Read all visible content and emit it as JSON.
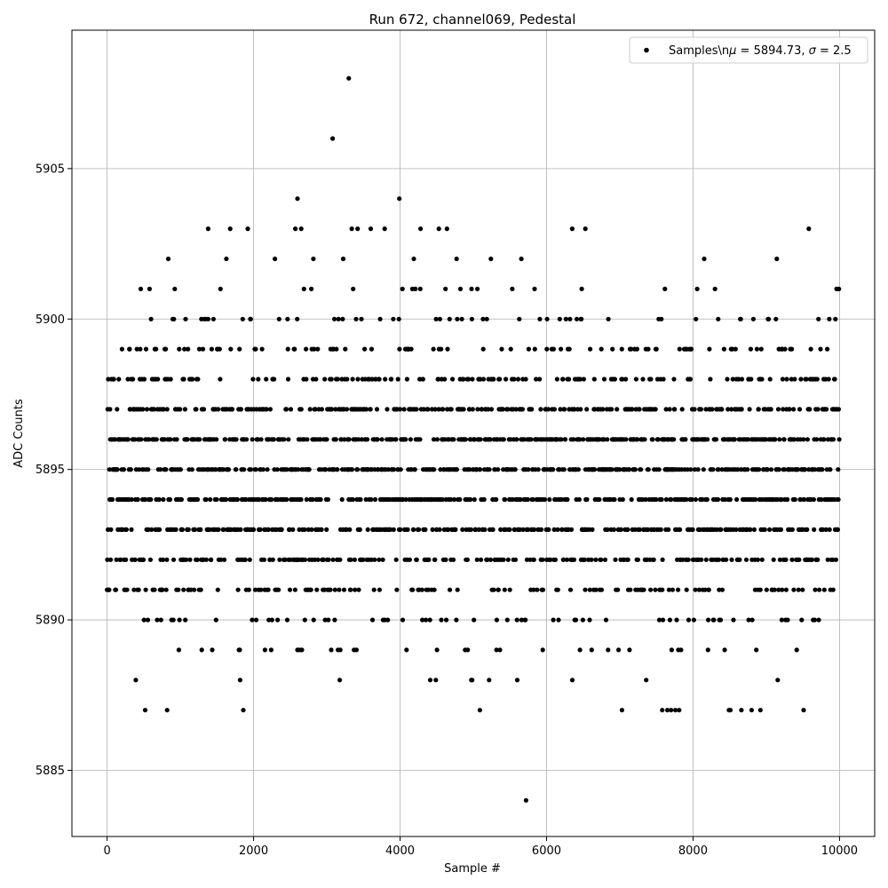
{
  "chart_data": {
    "type": "scatter",
    "title": "Run 672, channel069, Pedestal",
    "xlabel": "Sample #",
    "ylabel": "ADC Counts",
    "xlim": [
      -480,
      10480
    ],
    "ylim": [
      5882.8,
      5909.6
    ],
    "xticks": [
      0,
      2000,
      4000,
      6000,
      8000,
      10000
    ],
    "xtick_labels": [
      "0",
      "2000",
      "4000",
      "6000",
      "8000",
      "10000"
    ],
    "yticks": [
      5885,
      5890,
      5895,
      5900,
      5905
    ],
    "ytick_labels": [
      "5885",
      "5890",
      "5895",
      "5900",
      "5905"
    ],
    "grid": true,
    "legend": {
      "placement": "upper-right",
      "label_prefix": "Samples\\n",
      "label_mu_symbol": "μ",
      "label_mu_value": " = 5894.73, ",
      "label_sigma_symbol": "σ",
      "label_sigma_value": " = 2.5"
    },
    "marker_color": "#000000",
    "n_samples": 10000,
    "mean": 5894.73,
    "sigma": 2.5,
    "series": [
      {
        "points": [
          {
            "x": 3300,
            "y": 5908
          },
          {
            "x": 3080,
            "y": 5906
          },
          {
            "x": 2600,
            "y": 5904
          },
          {
            "x": 3990,
            "y": 5904
          },
          {
            "x": 5720,
            "y": 5884
          },
          {
            "x": 520,
            "y": 5887
          },
          {
            "x": 820,
            "y": 5887
          },
          {
            "x": 1860,
            "y": 5887
          },
          {
            "x": 5090,
            "y": 5887
          },
          {
            "x": 7030,
            "y": 5887
          },
          {
            "x": 7580,
            "y": 5887
          },
          {
            "x": 7650,
            "y": 5887
          },
          {
            "x": 7700,
            "y": 5887
          },
          {
            "x": 7760,
            "y": 5887
          },
          {
            "x": 7810,
            "y": 5887
          },
          {
            "x": 8490,
            "y": 5887
          },
          {
            "x": 8510,
            "y": 5887
          },
          {
            "x": 8660,
            "y": 5887
          },
          {
            "x": 8800,
            "y": 5887
          },
          {
            "x": 8920,
            "y": 5887
          },
          {
            "x": 9510,
            "y": 5887
          },
          {
            "x": 1380,
            "y": 5903
          },
          {
            "x": 1680,
            "y": 5903
          },
          {
            "x": 1920,
            "y": 5903
          },
          {
            "x": 2570,
            "y": 5903
          },
          {
            "x": 2650,
            "y": 5903
          },
          {
            "x": 3340,
            "y": 5903
          },
          {
            "x": 3420,
            "y": 5903
          },
          {
            "x": 3600,
            "y": 5903
          },
          {
            "x": 3790,
            "y": 5903
          },
          {
            "x": 4280,
            "y": 5903
          },
          {
            "x": 4530,
            "y": 5903
          },
          {
            "x": 4640,
            "y": 5903
          },
          {
            "x": 6350,
            "y": 5903
          },
          {
            "x": 6530,
            "y": 5903
          },
          {
            "x": 9580,
            "y": 5903
          }
        ]
      }
    ]
  }
}
